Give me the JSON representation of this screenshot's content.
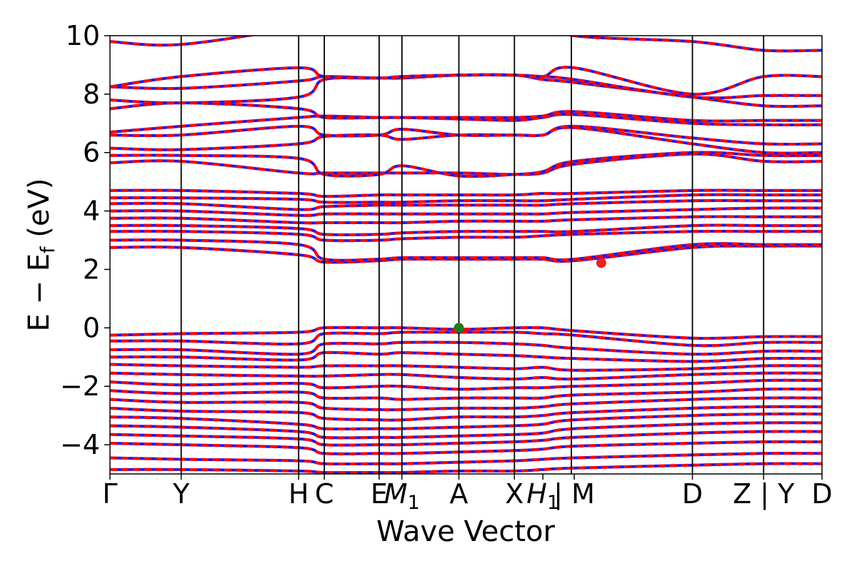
{
  "chart_data": {
    "type": "line",
    "title": "",
    "xlabel": "Wave Vector",
    "ylabel_main": "E − E",
    "ylabel_sub": "f",
    "ylabel_unit": " (eV)",
    "ylim": [
      -5,
      10
    ],
    "yticks": [
      {
        "value": -4,
        "label": "−4"
      },
      {
        "value": -2,
        "label": "−2"
      },
      {
        "value": 0,
        "label": "0"
      },
      {
        "value": 2,
        "label": "2"
      },
      {
        "value": 4,
        "label": "4"
      },
      {
        "value": 6,
        "label": "6"
      },
      {
        "value": 8,
        "label": "8"
      },
      {
        "value": 10,
        "label": "10"
      }
    ],
    "xlim": [
      0,
      1
    ],
    "kpoints": [
      {
        "label": "Γ",
        "x": 0.0
      },
      {
        "label": "Y",
        "x": 0.1
      },
      {
        "label": "H",
        "x": 0.265
      },
      {
        "label": "C",
        "x": 0.301
      },
      {
        "label": "E",
        "x": 0.378
      },
      {
        "label": "M",
        "sub": "1",
        "x": 0.41
      },
      {
        "label": "A",
        "x": 0.49
      },
      {
        "label": "X",
        "x": 0.568
      },
      {
        "label": "H",
        "sub": "1",
        "x": 0.608
      },
      {
        "label": "| M",
        "x": 0.652
      },
      {
        "label": "D",
        "x": 0.818
      },
      {
        "label": "Z | Y",
        "x": 0.918
      },
      {
        "label": "D",
        "x": 1.0
      }
    ],
    "vlines": [
      0.1,
      0.265,
      0.301,
      0.378,
      0.41,
      0.49,
      0.568,
      0.648,
      0.818,
      0.918
    ],
    "markers": [
      {
        "name": "valence-band-maximum",
        "x": 0.49,
        "y": 0.0,
        "color": "#1a7f1a"
      },
      {
        "name": "conduction-band-minimum",
        "x": 0.69,
        "y": 2.22,
        "color": "#e8241e"
      }
    ],
    "series_colors": {
      "red": "#ff0000",
      "blue": "#1a1aff"
    },
    "valence_bands": [
      [
        -0.25,
        -0.2,
        -0.15,
        -0.0,
        0.0,
        0.0,
        -0.05,
        0.0,
        0.0,
        -0.1,
        -0.35,
        -0.3,
        -0.3
      ],
      [
        -0.45,
        -0.45,
        -0.55,
        -0.2,
        -0.2,
        -0.15,
        -0.15,
        -0.15,
        -0.2,
        -0.25,
        -0.6,
        -0.5,
        -0.5
      ],
      [
        -0.75,
        -0.75,
        -0.9,
        -0.55,
        -0.55,
        -0.5,
        -0.5,
        -0.55,
        -0.6,
        -0.7,
        -0.9,
        -0.8,
        -0.8
      ],
      [
        -1.0,
        -1.0,
        -1.1,
        -0.85,
        -0.9,
        -0.85,
        -0.9,
        -0.95,
        -1.0,
        -1.05,
        -1.15,
        -1.05,
        -1.05
      ],
      [
        -1.25,
        -1.3,
        -1.35,
        -1.3,
        -1.3,
        -1.3,
        -1.35,
        -1.4,
        -1.35,
        -1.45,
        -1.4,
        -1.3,
        -1.3
      ],
      [
        -1.55,
        -1.6,
        -1.65,
        -1.65,
        -1.6,
        -1.6,
        -1.7,
        -1.75,
        -1.7,
        -1.75,
        -1.6,
        -1.55,
        -1.55
      ],
      [
        -1.85,
        -1.95,
        -1.9,
        -2.05,
        -2.0,
        -2.0,
        -2.1,
        -2.05,
        -2.05,
        -2.0,
        -1.9,
        -1.8,
        -1.8
      ],
      [
        -2.15,
        -2.25,
        -2.2,
        -2.4,
        -2.4,
        -2.45,
        -2.4,
        -2.4,
        -2.4,
        -2.3,
        -2.2,
        -2.1,
        -2.1
      ],
      [
        -2.45,
        -2.55,
        -2.55,
        -2.75,
        -2.8,
        -2.8,
        -2.75,
        -2.75,
        -2.7,
        -2.6,
        -2.45,
        -2.4,
        -2.4
      ],
      [
        -2.75,
        -2.85,
        -2.9,
        -3.1,
        -3.15,
        -3.15,
        -3.05,
        -3.05,
        -3.0,
        -2.9,
        -2.75,
        -2.7,
        -2.7
      ],
      [
        -3.05,
        -3.1,
        -3.3,
        -3.45,
        -3.45,
        -3.45,
        -3.4,
        -3.35,
        -3.3,
        -3.15,
        -3.0,
        -2.95,
        -2.95
      ],
      [
        -3.35,
        -3.4,
        -3.55,
        -3.75,
        -3.75,
        -3.75,
        -3.7,
        -3.65,
        -3.6,
        -3.45,
        -3.3,
        -3.25,
        -3.25
      ],
      [
        -3.65,
        -3.7,
        -3.8,
        -4.0,
        -4.0,
        -4.0,
        -3.95,
        -3.9,
        -3.85,
        -3.75,
        -3.6,
        -3.55,
        -3.55
      ],
      [
        -3.95,
        -4.0,
        -4.1,
        -4.3,
        -4.3,
        -4.3,
        -4.25,
        -4.2,
        -4.15,
        -4.05,
        -3.95,
        -3.9,
        -3.9
      ],
      [
        -4.45,
        -4.5,
        -4.55,
        -4.65,
        -4.65,
        -4.65,
        -4.6,
        -4.55,
        -4.5,
        -4.45,
        -4.35,
        -4.3,
        -4.3
      ],
      [
        -4.85,
        -4.85,
        -4.9,
        -4.95,
        -4.95,
        -4.95,
        -4.9,
        -4.9,
        -4.85,
        -4.8,
        -4.7,
        -4.65,
        -4.65
      ]
    ],
    "conduction_bands": [
      [
        2.75,
        2.75,
        2.5,
        2.25,
        2.3,
        2.35,
        2.35,
        2.35,
        2.35,
        2.3,
        2.75,
        2.8,
        2.8
      ],
      [
        3.0,
        3.0,
        2.85,
        2.35,
        2.35,
        2.4,
        2.4,
        2.4,
        2.4,
        2.35,
        2.85,
        2.85,
        2.85
      ],
      [
        3.3,
        3.3,
        3.2,
        3.0,
        3.0,
        3.05,
        3.1,
        3.1,
        3.15,
        3.2,
        3.3,
        3.3,
        3.3
      ],
      [
        3.5,
        3.5,
        3.4,
        3.2,
        3.2,
        3.25,
        3.3,
        3.3,
        3.3,
        3.3,
        3.5,
        3.5,
        3.5
      ],
      [
        3.75,
        3.75,
        3.6,
        3.6,
        3.6,
        3.6,
        3.65,
        3.65,
        3.65,
        3.7,
        3.8,
        3.8,
        3.8
      ],
      [
        4.0,
        4.0,
        3.85,
        3.9,
        3.9,
        3.9,
        3.9,
        3.9,
        3.9,
        3.95,
        4.05,
        4.1,
        4.1
      ],
      [
        4.25,
        4.25,
        4.05,
        4.15,
        4.2,
        4.2,
        4.2,
        4.2,
        4.2,
        4.25,
        4.35,
        4.35,
        4.35
      ],
      [
        4.45,
        4.45,
        4.4,
        4.3,
        4.3,
        4.3,
        4.35,
        4.35,
        4.35,
        4.4,
        4.55,
        4.55,
        4.55
      ],
      [
        4.7,
        4.7,
        4.6,
        4.5,
        4.55,
        4.55,
        4.55,
        4.55,
        4.6,
        4.6,
        4.7,
        4.7,
        4.7
      ],
      [
        5.65,
        5.7,
        5.3,
        5.3,
        5.3,
        5.3,
        5.3,
        5.25,
        5.3,
        5.6,
        5.95,
        5.7,
        5.7
      ],
      [
        5.9,
        5.9,
        5.8,
        5.25,
        5.25,
        5.55,
        5.2,
        5.25,
        5.35,
        5.7,
        6.0,
        5.9,
        5.9
      ],
      [
        6.15,
        6.1,
        6.3,
        6.55,
        6.6,
        6.45,
        6.6,
        6.6,
        6.6,
        6.85,
        6.3,
        6.0,
        6.0
      ],
      [
        6.6,
        6.6,
        6.9,
        6.6,
        6.6,
        6.8,
        6.6,
        6.6,
        6.6,
        6.9,
        6.5,
        6.3,
        6.3
      ],
      [
        6.7,
        6.9,
        7.2,
        7.25,
        7.2,
        7.2,
        7.15,
        7.1,
        7.2,
        7.3,
        7.0,
        6.95,
        6.95
      ],
      [
        7.5,
        7.7,
        7.5,
        7.2,
        7.2,
        7.2,
        7.2,
        7.2,
        7.25,
        7.4,
        7.1,
        7.1,
        7.1
      ],
      [
        7.8,
        7.7,
        7.9,
        8.5,
        8.55,
        8.55,
        8.65,
        8.65,
        8.5,
        8.4,
        7.9,
        7.6,
        7.6
      ],
      [
        8.25,
        8.2,
        8.45,
        8.6,
        8.55,
        8.6,
        8.65,
        8.65,
        8.6,
        8.5,
        7.9,
        7.95,
        7.95
      ],
      [
        8.25,
        8.6,
        8.9,
        8.6,
        8.55,
        8.6,
        8.65,
        8.65,
        8.6,
        8.9,
        8.0,
        8.6,
        8.6
      ],
      [
        9.8,
        9.7,
        10.3,
        10.6,
        10.6,
        10.6,
        10.6,
        10.6,
        10.5,
        10.0,
        9.8,
        9.5,
        9.5
      ]
    ]
  }
}
